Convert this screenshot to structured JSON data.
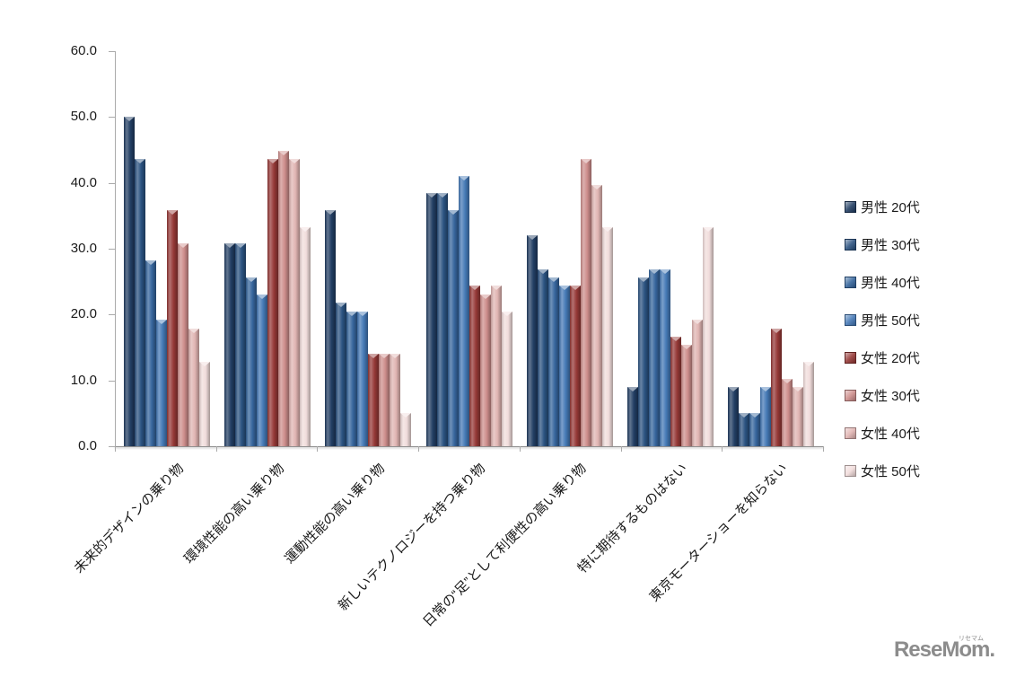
{
  "chart_data": {
    "type": "bar",
    "title": "",
    "categories": [
      "未来的デザインの乗り物",
      "環境性能の高い乗り物",
      "運動性能の高い乗り物",
      "新しいテクノロジーを持つ乗り物",
      "日常の“足”として利便性の高い乗り物",
      "特に期待するものはない",
      "東京モーターショーを知らない"
    ],
    "series": [
      {
        "name": "男性 20代",
        "color": "#1F3B61",
        "values": [
          50.0,
          30.8,
          35.9,
          38.5,
          32.1,
          9.0,
          9.0
        ]
      },
      {
        "name": "男性 30代",
        "color": "#28507F",
        "values": [
          43.6,
          30.8,
          21.8,
          38.5,
          26.9,
          25.6,
          5.1
        ]
      },
      {
        "name": "男性 40代",
        "color": "#33639B",
        "values": [
          28.2,
          25.6,
          20.5,
          35.9,
          25.6,
          26.9,
          5.1
        ]
      },
      {
        "name": "男性 50代",
        "color": "#4277B5",
        "values": [
          19.2,
          23.1,
          20.5,
          41.0,
          24.4,
          26.9,
          9.0
        ]
      },
      {
        "name": "女性 20代",
        "color": "#943634",
        "values": [
          35.9,
          43.6,
          14.1,
          24.4,
          24.4,
          16.7,
          17.9
        ]
      },
      {
        "name": "女性 30代",
        "color": "#CD8C8A",
        "values": [
          30.8,
          44.9,
          14.1,
          23.1,
          43.6,
          15.4,
          10.3
        ]
      },
      {
        "name": "女性 40代",
        "color": "#E0B3B1",
        "values": [
          17.9,
          43.6,
          14.1,
          24.4,
          39.7,
          19.2,
          9.0
        ]
      },
      {
        "name": "女性 50代",
        "color": "#F1DCDB",
        "values": [
          12.8,
          33.3,
          5.1,
          20.5,
          33.3,
          33.3,
          12.8
        ]
      }
    ],
    "ylim": [
      0,
      60
    ],
    "ytick_labels": [
      "0.0",
      "10.0",
      "20.0",
      "30.0",
      "40.0",
      "50.0",
      "60.0"
    ],
    "grid": false,
    "legend_position": "right",
    "axis_color": "#AAAAAA"
  },
  "watermark": {
    "text": "ReseMom.",
    "ruby": "リセマム"
  }
}
